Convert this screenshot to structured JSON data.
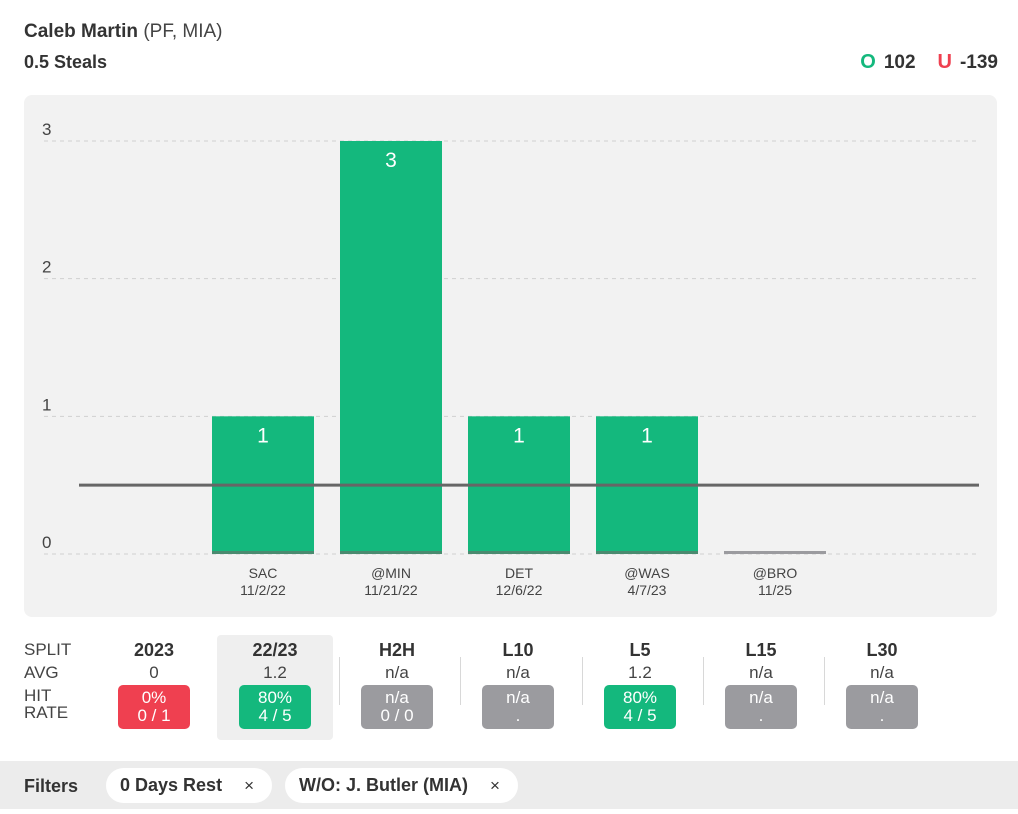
{
  "player": {
    "name": "Caleb Martin",
    "meta": "(PF, MIA)",
    "prop": "0.5 Steals"
  },
  "odds": {
    "over_symbol": "O",
    "over_value": "102",
    "under_symbol": "U",
    "under_value": "-139"
  },
  "colors": {
    "green": "#14b87d",
    "red": "#ef4050",
    "gray": "#9b9b9f",
    "line": "#666666"
  },
  "chart_data": {
    "type": "bar",
    "categories": [
      "SAC 11/2/22",
      "@MIN 11/21/22",
      "DET 12/6/22",
      "@WAS 4/7/23",
      "@BRO 11/25"
    ],
    "opponents": [
      "SAC",
      "@MIN",
      "DET",
      "@WAS",
      "@BRO"
    ],
    "dates": [
      "11/2/22",
      "11/21/22",
      "12/6/22",
      "4/7/23",
      "11/25"
    ],
    "values": [
      1,
      3,
      1,
      1,
      0
    ],
    "value_labels": [
      "1",
      "3",
      "1",
      "1",
      ""
    ],
    "prop_line": 0.5,
    "yticks": [
      "0",
      "1",
      "2",
      "3"
    ],
    "ylim": [
      0,
      3
    ],
    "grid": true
  },
  "splits": {
    "labels": {
      "split": "SPLIT",
      "avg": "AVG",
      "hit_line1": "HIT",
      "hit_line2": "RATE"
    },
    "columns": [
      {
        "name": "2023",
        "avg": "0",
        "pct": "0%",
        "count": "0 / 1",
        "status": "red",
        "selected": false
      },
      {
        "name": "22/23",
        "avg": "1.2",
        "pct": "80%",
        "count": "4 / 5",
        "status": "green",
        "selected": true
      },
      {
        "name": "H2H",
        "avg": "n/a",
        "pct": "n/a",
        "count": "0 / 0",
        "status": "gray",
        "selected": false
      },
      {
        "name": "L10",
        "avg": "n/a",
        "pct": "n/a",
        "count": ".",
        "status": "gray",
        "selected": false
      },
      {
        "name": "L5",
        "avg": "1.2",
        "pct": "80%",
        "count": "4 / 5",
        "status": "green",
        "selected": false
      },
      {
        "name": "L15",
        "avg": "n/a",
        "pct": "n/a",
        "count": ".",
        "status": "gray",
        "selected": false
      },
      {
        "name": "L30",
        "avg": "n/a",
        "pct": "n/a",
        "count": ".",
        "status": "gray",
        "selected": false
      }
    ]
  },
  "filters": {
    "label": "Filters",
    "chips": [
      {
        "label": "0 Days Rest",
        "remove": "×"
      },
      {
        "label": "W/O: J. Butler (MIA)",
        "remove": "×"
      }
    ]
  }
}
